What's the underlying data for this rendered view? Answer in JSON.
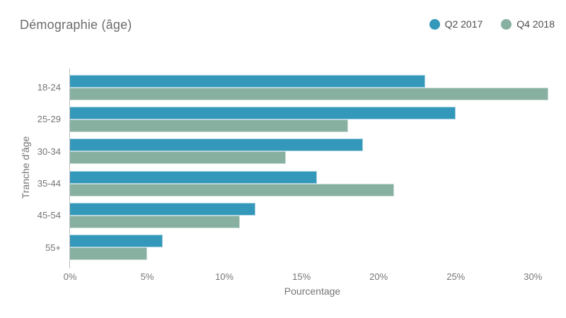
{
  "title": "Démographie (âge)",
  "chart_data": {
    "type": "bar",
    "orientation": "horizontal",
    "title": "Démographie (âge)",
    "categories": [
      "18-24",
      "25-29",
      "30-34",
      "35-44",
      "45-54",
      "55+"
    ],
    "series": [
      {
        "name": "Q2 2017",
        "color": "#3398ba",
        "values": [
          23,
          25,
          19,
          16,
          12,
          6
        ]
      },
      {
        "name": "Q4 2018",
        "color": "#87b0a0",
        "values": [
          31,
          18,
          14,
          21,
          11,
          5
        ]
      }
    ],
    "xlabel": "Pourcentage",
    "ylabel": "Tranche d'âge",
    "xlim": [
      0,
      31.5
    ],
    "xticks": [
      0,
      5,
      10,
      15,
      20,
      25,
      30
    ],
    "xtick_labels": [
      "0%",
      "5%",
      "10%",
      "15%",
      "20%",
      "25%",
      "30%"
    ],
    "grid": false,
    "legend_position": "top-right",
    "axis_line_color": "#c0c0c0",
    "text_color": "#757575"
  }
}
